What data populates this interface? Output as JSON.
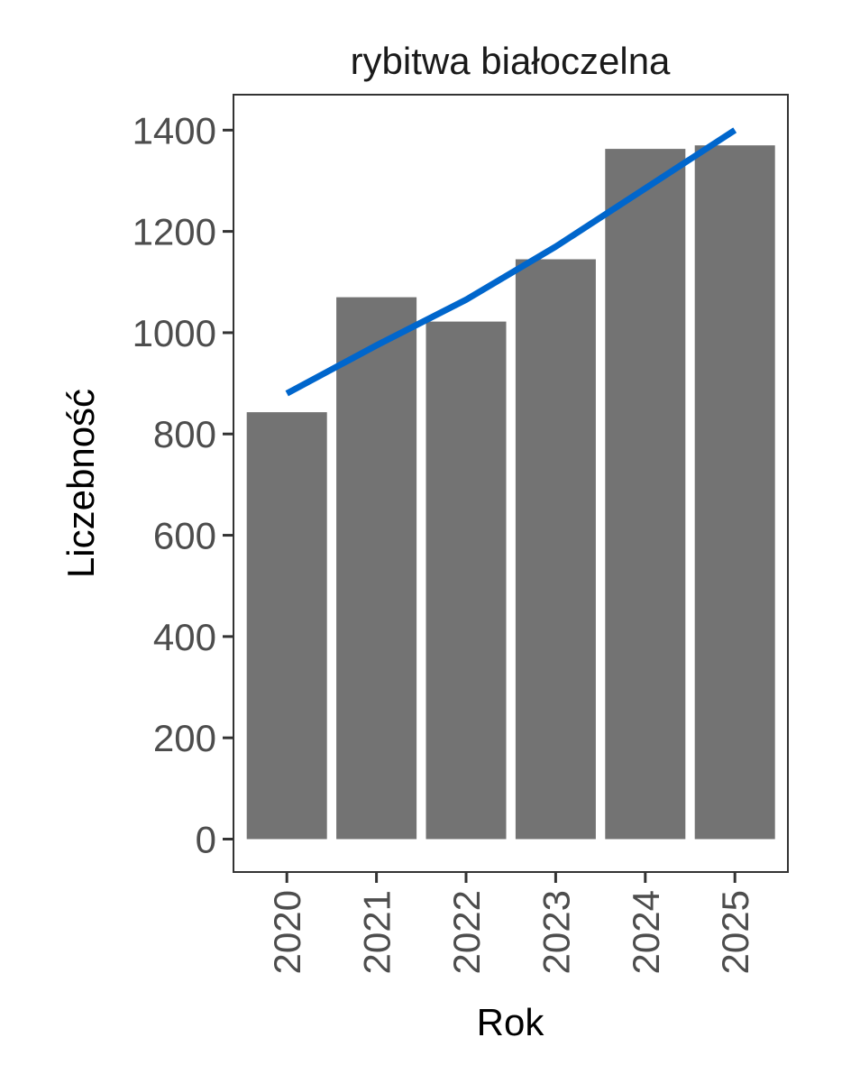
{
  "chart_data": {
    "type": "bar",
    "title": "rybitwa białoczelna",
    "xlabel": "Rok",
    "ylabel": "Liczebność",
    "categories": [
      "2020",
      "2021",
      "2022",
      "2023",
      "2024",
      "2025"
    ],
    "values": [
      843,
      1070,
      1022,
      1145,
      1363,
      1370
    ],
    "trend": {
      "values": [
        880,
        975,
        1065,
        1170,
        1285,
        1400
      ],
      "color": "#0066cc"
    },
    "ylim": [
      -65,
      1470
    ],
    "yticks": [
      0,
      200,
      400,
      600,
      800,
      1000,
      1200,
      1400
    ],
    "bar_color": "#737373",
    "grid": false,
    "legend": "none"
  }
}
